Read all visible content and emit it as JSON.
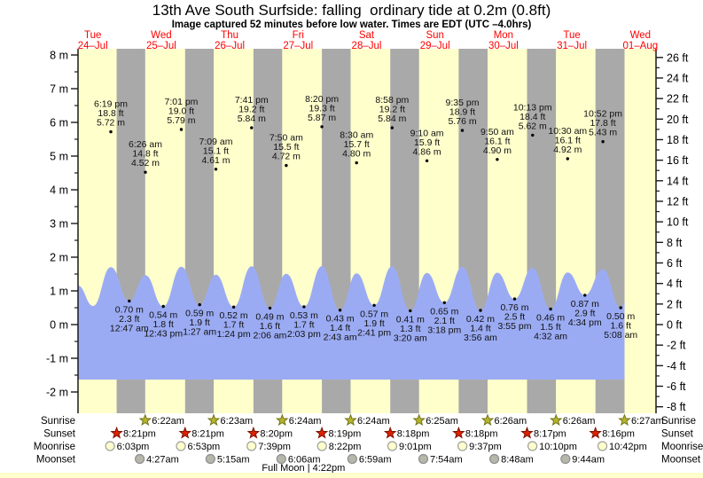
{
  "title": "13th Ave South Surfside: falling  ordinary tide at 0.2m (0.8ft)",
  "subtitle": "Image captured 52 minutes before low water. Times are EDT (UTC –4.0hrs)",
  "colors": {
    "day_band": "#ffffcc",
    "night_band": "#a9a9a9",
    "water": "#9babf3",
    "day_label": "#ff0000",
    "axis": "#1a1a1a",
    "text": "#111111",
    "sunrise_star": "#b5b52a",
    "sunrise_star_stroke": "#73731a",
    "sunset_star": "#dd2200",
    "sunset_star_stroke": "#7a1200",
    "moonrise_fill": "#ffffcc",
    "moonrise_stroke": "#a0a0a0",
    "moonset_fill": "#b6b6aa",
    "moonset_stroke": "#8f8f8f"
  },
  "chart_data": {
    "type": "area",
    "title": "13th Ave South Surfside tide forecast",
    "days": [
      {
        "weekday": "Tue",
        "date": "24–Jul"
      },
      {
        "weekday": "Wed",
        "date": "25–Jul"
      },
      {
        "weekday": "Thu",
        "date": "26–Jul"
      },
      {
        "weekday": "Fri",
        "date": "27–Jul"
      },
      {
        "weekday": "Sat",
        "date": "28–Jul"
      },
      {
        "weekday": "Sun",
        "date": "29–Jul"
      },
      {
        "weekday": "Mon",
        "date": "30–Jul"
      },
      {
        "weekday": "Tue",
        "date": "31–Jul"
      },
      {
        "weekday": "Wed",
        "date": "01–Aug"
      }
    ],
    "y_axis_left": {
      "unit": "m",
      "min": -2,
      "max": 8,
      "label_step": 1
    },
    "y_axis_right": {
      "unit": "ft",
      "min": -8,
      "max": 26,
      "label_step": 2
    },
    "tide_events": [
      {
        "day": 0,
        "time": "6:19 pm",
        "ft": "18.8",
        "m": "5.72",
        "type": "high"
      },
      {
        "day": 1,
        "time": "12:47 am",
        "ft": "2.3",
        "m": "0.70",
        "type": "low"
      },
      {
        "day": 1,
        "time": "6:26 am",
        "ft": "14.8",
        "m": "4.52",
        "type": "high"
      },
      {
        "day": 1,
        "time": "12:43 pm",
        "ft": "1.8",
        "m": "0.54",
        "type": "low"
      },
      {
        "day": 1,
        "time": "7:01 pm",
        "ft": "19.0",
        "m": "5.79",
        "type": "high"
      },
      {
        "day": 2,
        "time": "1:27 am",
        "ft": "1.9",
        "m": "0.59",
        "type": "low"
      },
      {
        "day": 2,
        "time": "7:09 am",
        "ft": "15.1",
        "m": "4.61",
        "type": "high"
      },
      {
        "day": 2,
        "time": "1:24 pm",
        "ft": "1.7",
        "m": "0.52",
        "type": "low"
      },
      {
        "day": 2,
        "time": "7:41 pm",
        "ft": "19.2",
        "m": "5.84",
        "type": "high"
      },
      {
        "day": 3,
        "time": "2:06 am",
        "ft": "1.6",
        "m": "0.49",
        "type": "low"
      },
      {
        "day": 3,
        "time": "7:50 am",
        "ft": "15.5",
        "m": "4.72",
        "type": "high"
      },
      {
        "day": 3,
        "time": "2:03 pm",
        "ft": "1.7",
        "m": "0.53",
        "type": "low"
      },
      {
        "day": 3,
        "time": "8:20 pm",
        "ft": "19.3",
        "m": "5.87",
        "type": "high"
      },
      {
        "day": 4,
        "time": "2:43 am",
        "ft": "1.4",
        "m": "0.43",
        "type": "low"
      },
      {
        "day": 4,
        "time": "8:30 am",
        "ft": "15.7",
        "m": "4.80",
        "type": "high"
      },
      {
        "day": 4,
        "time": "2:41 pm",
        "ft": "1.9",
        "m": "0.57",
        "type": "low"
      },
      {
        "day": 4,
        "time": "8:58 pm",
        "ft": "19.2",
        "m": "5.84",
        "type": "high"
      },
      {
        "day": 5,
        "time": "3:20 am",
        "ft": "1.3",
        "m": "0.41",
        "type": "low"
      },
      {
        "day": 5,
        "time": "9:10 am",
        "ft": "15.9",
        "m": "4.86",
        "type": "high"
      },
      {
        "day": 5,
        "time": "3:18 pm",
        "ft": "2.1",
        "m": "0.65",
        "type": "low"
      },
      {
        "day": 5,
        "time": "9:35 pm",
        "ft": "18.9",
        "m": "5.76",
        "type": "high"
      },
      {
        "day": 6,
        "time": "3:56 am",
        "ft": "1.4",
        "m": "0.42",
        "type": "low"
      },
      {
        "day": 6,
        "time": "9:50 am",
        "ft": "16.1",
        "m": "4.90",
        "type": "high"
      },
      {
        "day": 6,
        "time": "3:55 pm",
        "ft": "2.5",
        "m": "0.76",
        "type": "low"
      },
      {
        "day": 6,
        "time": "10:13 pm",
        "ft": "18.4",
        "m": "5.62",
        "type": "high"
      },
      {
        "day": 7,
        "time": "4:32 am",
        "ft": "1.5",
        "m": "0.46",
        "type": "low"
      },
      {
        "day": 7,
        "time": "10:30 am",
        "ft": "16.1",
        "m": "4.92",
        "type": "high"
      },
      {
        "day": 7,
        "time": "4:34 pm",
        "ft": "2.9",
        "m": "0.87",
        "type": "low"
      },
      {
        "day": 7,
        "time": "10:52 pm",
        "ft": "17.8",
        "m": "5.43",
        "type": "high"
      },
      {
        "day": 8,
        "time": "5:08 am",
        "ft": "1.6",
        "m": "0.50",
        "type": "low"
      }
    ],
    "astro": {
      "rows": [
        {
          "label": "Sunrise",
          "icon": "sunrise-star",
          "entries": [
            {
              "day": 1,
              "time": "6:22am"
            },
            {
              "day": 2,
              "time": "6:23am"
            },
            {
              "day": 3,
              "time": "6:24am"
            },
            {
              "day": 4,
              "time": "6:24am"
            },
            {
              "day": 5,
              "time": "6:25am"
            },
            {
              "day": 6,
              "time": "6:26am"
            },
            {
              "day": 7,
              "time": "6:26am"
            },
            {
              "day": 8,
              "time": "6:27am"
            }
          ]
        },
        {
          "label": "Sunset",
          "icon": "sunset-star",
          "entries": [
            {
              "day": 0,
              "time": "8:21pm"
            },
            {
              "day": 1,
              "time": "8:21pm"
            },
            {
              "day": 2,
              "time": "8:20pm"
            },
            {
              "day": 3,
              "time": "8:19pm"
            },
            {
              "day": 4,
              "time": "8:18pm"
            },
            {
              "day": 5,
              "time": "8:18pm"
            },
            {
              "day": 6,
              "time": "8:17pm"
            },
            {
              "day": 7,
              "time": "8:16pm"
            }
          ]
        },
        {
          "label": "Moonrise",
          "icon": "moonrise-circle",
          "entries": [
            {
              "day": 0,
              "time": "6:03pm"
            },
            {
              "day": 1,
              "time": "6:53pm"
            },
            {
              "day": 2,
              "time": "7:39pm"
            },
            {
              "day": 3,
              "time": "8:22pm"
            },
            {
              "day": 4,
              "time": "9:01pm"
            },
            {
              "day": 5,
              "time": "9:37pm"
            },
            {
              "day": 6,
              "time": "10:10pm"
            },
            {
              "day": 7,
              "time": "10:42pm"
            }
          ]
        },
        {
          "label": "Moonset",
          "icon": "moonset-circle",
          "entries": [
            {
              "day": 1,
              "time": "4:27am"
            },
            {
              "day": 2,
              "time": "5:15am"
            },
            {
              "day": 3,
              "time": "6:06am"
            },
            {
              "day": 4,
              "time": "6:59am"
            },
            {
              "day": 5,
              "time": "7:54am"
            },
            {
              "day": 6,
              "time": "8:48am"
            },
            {
              "day": 7,
              "time": "9:44am"
            }
          ]
        }
      ],
      "full_moon": {
        "label": "Full Moon",
        "time": "4:22pm",
        "day": 3
      }
    }
  }
}
